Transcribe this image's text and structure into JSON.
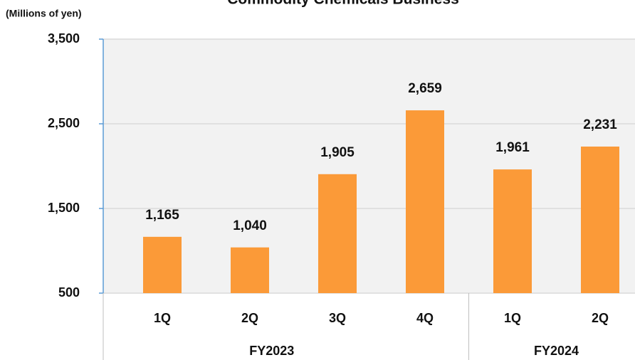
{
  "chart_data": {
    "type": "bar",
    "title": "Commodity Chemicals Business",
    "y_label": "(Millions of yen)",
    "categories": [
      "1Q",
      "2Q",
      "3Q",
      "4Q",
      "1Q",
      "2Q"
    ],
    "groups": [
      {
        "name": "FY2023",
        "span": 4
      },
      {
        "name": "FY2024",
        "span": 2
      }
    ],
    "values": [
      1165,
      1040,
      1905,
      2659,
      1961,
      2231
    ],
    "value_labels": [
      "1,165",
      "1,040",
      "1,905",
      "2,659",
      "1,961",
      "2,231"
    ],
    "color": "#fb9a38",
    "ylim": [
      500,
      3500
    ],
    "yticks": [
      {
        "value": 500,
        "label": "500"
      },
      {
        "value": 1500,
        "label": "1,500"
      },
      {
        "value": 2500,
        "label": "2,500"
      },
      {
        "value": 3500,
        "label": "3,500"
      }
    ],
    "grid": true
  }
}
